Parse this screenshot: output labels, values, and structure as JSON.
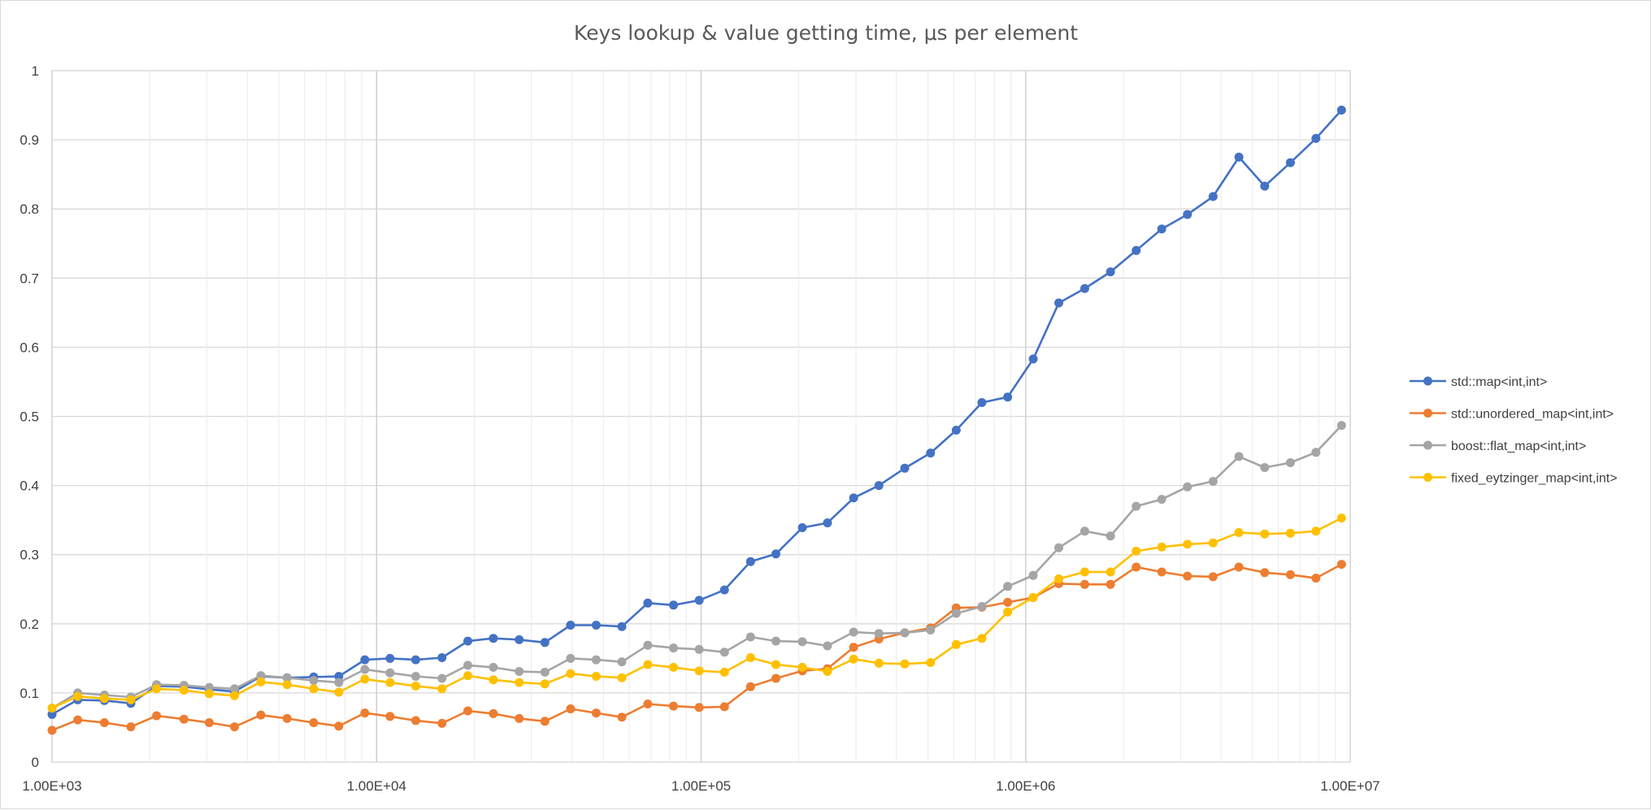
{
  "chart_data": {
    "type": "line",
    "title": "Keys lookup & value getting time, μs per element",
    "xlabel": "",
    "ylabel": "",
    "x_scale": "log",
    "xlim": [
      1000,
      10000000
    ],
    "ylim": [
      0,
      1
    ],
    "x_ticks": [
      "1.00E+03",
      "1.00E+04",
      "1.00E+05",
      "1.00E+06",
      "1.00E+07"
    ],
    "y_ticks": [
      "0",
      "0.1",
      "0.2",
      "0.3",
      "0.4",
      "0.5",
      "0.6",
      "0.7",
      "0.8",
      "0.9",
      "1"
    ],
    "grid": true,
    "legend_position": "right",
    "x": [
      1000,
      1200,
      1450,
      1750,
      2100,
      2550,
      3050,
      3650,
      4400,
      5300,
      6400,
      7650,
      9200,
      11000,
      13200,
      15900,
      19100,
      22900,
      27500,
      33000,
      39600,
      47500,
      57000,
      68500,
      82200,
      98600,
      118000,
      142000,
      170000,
      205000,
      245000,
      295000,
      353000,
      424000,
      509000,
      611000,
      733000,
      880000,
      1055000,
      1265000,
      1520000,
      1825000,
      2190000,
      2625000,
      3150000,
      3780000,
      4540000,
      5450000,
      6540000,
      7840000,
      9400000
    ],
    "series": [
      {
        "name": "std::map<int,int>",
        "color": "#4472c4",
        "values": [
          0.069,
          0.09,
          0.089,
          0.085,
          0.11,
          0.109,
          0.105,
          0.102,
          0.124,
          0.122,
          0.123,
          0.124,
          0.148,
          0.15,
          0.148,
          0.151,
          0.175,
          0.179,
          0.177,
          0.173,
          0.198,
          0.198,
          0.196,
          0.23,
          0.227,
          0.234,
          0.249,
          0.29,
          0.301,
          0.339,
          0.346,
          0.382,
          0.4,
          0.425,
          0.447,
          0.48,
          0.52,
          0.528,
          0.583,
          0.664,
          0.685,
          0.709,
          0.74,
          0.771,
          0.792,
          0.818,
          0.875,
          0.833,
          0.867,
          0.902,
          0.943
        ]
      },
      {
        "name": "std::unordered_map<int,int>",
        "color": "#ed7d31",
        "values": [
          0.046,
          0.061,
          0.057,
          0.051,
          0.067,
          0.062,
          0.057,
          0.051,
          0.068,
          0.063,
          0.057,
          0.052,
          0.071,
          0.066,
          0.06,
          0.056,
          0.074,
          0.07,
          0.063,
          0.059,
          0.077,
          0.071,
          0.065,
          0.084,
          0.081,
          0.079,
          0.08,
          0.109,
          0.121,
          0.132,
          0.135,
          0.166,
          0.178,
          0.187,
          0.194,
          0.223,
          0.224,
          0.231,
          0.238,
          0.258,
          0.257,
          0.257,
          0.282,
          0.275,
          0.269,
          0.268,
          0.282,
          0.274,
          0.271,
          0.266,
          0.286
        ]
      },
      {
        "name": "boost::flat_map<int,int>",
        "color": "#a5a5a5",
        "values": [
          0.078,
          0.1,
          0.097,
          0.094,
          0.112,
          0.111,
          0.108,
          0.106,
          0.125,
          0.122,
          0.118,
          0.115,
          0.134,
          0.129,
          0.124,
          0.121,
          0.14,
          0.137,
          0.131,
          0.13,
          0.15,
          0.148,
          0.145,
          0.169,
          0.165,
          0.163,
          0.159,
          0.181,
          0.175,
          0.174,
          0.168,
          0.188,
          0.186,
          0.187,
          0.191,
          0.215,
          0.225,
          0.254,
          0.27,
          0.31,
          0.334,
          0.327,
          0.37,
          0.38,
          0.398,
          0.406,
          0.442,
          0.426,
          0.433,
          0.448,
          0.487
        ]
      },
      {
        "name": "fixed_eytzinger_map<int,int>",
        "color": "#ffc000",
        "values": [
          0.078,
          0.095,
          0.092,
          0.09,
          0.106,
          0.104,
          0.099,
          0.096,
          0.116,
          0.112,
          0.106,
          0.101,
          0.12,
          0.115,
          0.11,
          0.106,
          0.125,
          0.119,
          0.115,
          0.113,
          0.128,
          0.124,
          0.122,
          0.141,
          0.137,
          0.132,
          0.13,
          0.151,
          0.141,
          0.137,
          0.131,
          0.149,
          0.143,
          0.142,
          0.144,
          0.17,
          0.179,
          0.217,
          0.238,
          0.265,
          0.275,
          0.275,
          0.305,
          0.311,
          0.315,
          0.317,
          0.332,
          0.33,
          0.331,
          0.334,
          0.353
        ]
      }
    ]
  }
}
